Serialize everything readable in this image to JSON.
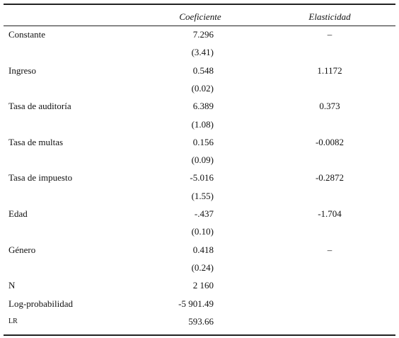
{
  "table": {
    "header": {
      "coef": "Coeficiente",
      "elasticity": "Elasticidad"
    },
    "rows": [
      {
        "label": "Constante",
        "coef": "7.296",
        "elasticity": "–"
      },
      {
        "coef": "(3.41)"
      },
      {
        "label": "Ingreso",
        "coef": "0.548",
        "elasticity": "1.1172"
      },
      {
        "coef": "(0.02)"
      },
      {
        "label": "Tasa de auditoría",
        "coef": "6.389",
        "elasticity": "0.373"
      },
      {
        "coef": "(1.08)"
      },
      {
        "label": "Tasa de multas",
        "coef": "0.156",
        "elasticity": "-0.0082"
      },
      {
        "coef": "(0.09)"
      },
      {
        "label": "Tasa de impuesto",
        "coef": "-5.016",
        "elasticity": "-0.2872"
      },
      {
        "coef": "(1.55)"
      },
      {
        "label": "Edad",
        "coef": "-.437",
        "elasticity": "-1.704"
      },
      {
        "coef": "(0.10)"
      },
      {
        "label": "Género",
        "coef": "0.418",
        "elasticity": "–"
      },
      {
        "coef": "(0.24)"
      },
      {
        "label": "N",
        "coef": "2 160"
      },
      {
        "label": "Log-probabilidad",
        "coef": "-5 901.49"
      },
      {
        "label": "LR",
        "coef": "593.66"
      }
    ]
  }
}
